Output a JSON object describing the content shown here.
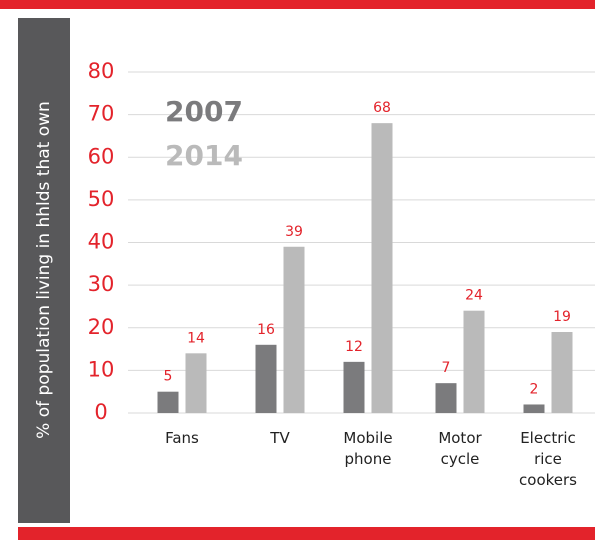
{
  "chart_data": {
    "type": "bar",
    "y_label": "% of population living in hhlds that own",
    "categories": [
      "Fans",
      "TV",
      "Mobile phone",
      "Motor cycle",
      "Electric rice cookers"
    ],
    "series": [
      {
        "name": "2007",
        "color": "#7b7b7d",
        "values": [
          5,
          16,
          12,
          7,
          2
        ]
      },
      {
        "name": "2014",
        "color": "#bababa",
        "values": [
          14,
          39,
          68,
          24,
          19
        ]
      }
    ],
    "ylim": [
      0,
      80
    ],
    "yticks": [
      0,
      10,
      20,
      30,
      40,
      50,
      60,
      70,
      80
    ],
    "grid": true
  }
}
